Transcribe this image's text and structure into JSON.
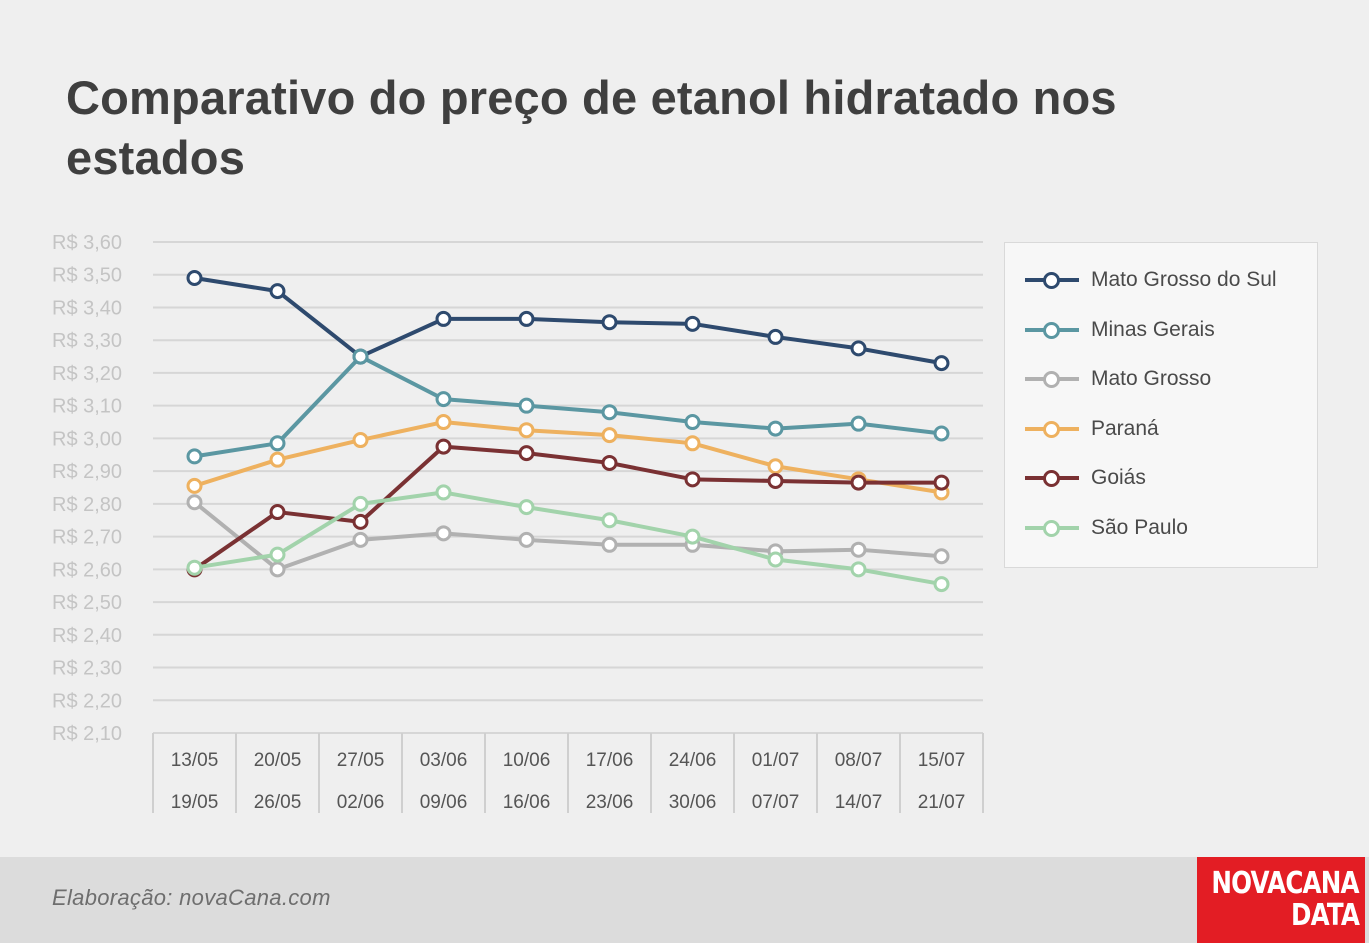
{
  "chart_data": {
    "type": "line",
    "title": "Comparativo do preço de etanol hidratado nos estados",
    "xlabel": "",
    "ylabel": "",
    "ylim": [
      2.1,
      3.6
    ],
    "y_ticks": [
      3.6,
      3.5,
      3.4,
      3.3,
      3.2,
      3.1,
      3.0,
      2.9,
      2.8,
      2.7,
      2.6,
      2.5,
      2.4,
      2.3,
      2.2,
      2.1
    ],
    "y_tick_labels": [
      "R$ 3,60",
      "R$ 3,50",
      "R$ 3,40",
      "R$ 3,30",
      "R$ 3,20",
      "R$ 3,10",
      "R$ 3,00",
      "R$ 2,90",
      "R$ 2,80",
      "R$ 2,70",
      "R$ 2,60",
      "R$ 2,50",
      "R$ 2,40",
      "R$ 2,30",
      "R$ 2,20",
      "R$ 2,10"
    ],
    "grid": true,
    "legend_position": "right",
    "categories": [
      {
        "start": "13/05",
        "end": "19/05"
      },
      {
        "start": "20/05",
        "end": "26/05"
      },
      {
        "start": "27/05",
        "end": "02/06"
      },
      {
        "start": "03/06",
        "end": "09/06"
      },
      {
        "start": "10/06",
        "end": "16/06"
      },
      {
        "start": "17/06",
        "end": "23/06"
      },
      {
        "start": "24/06",
        "end": "30/06"
      },
      {
        "start": "01/07",
        "end": "07/07"
      },
      {
        "start": "08/07",
        "end": "14/07"
      },
      {
        "start": "15/07",
        "end": "21/07"
      }
    ],
    "series": [
      {
        "name": "Mato Grosso do Sul",
        "color": "#2e4a6e",
        "values": [
          3.49,
          3.45,
          3.25,
          3.365,
          3.365,
          3.355,
          3.35,
          3.31,
          3.275,
          3.23
        ]
      },
      {
        "name": "Minas Gerais",
        "color": "#5b97a2",
        "values": [
          2.945,
          2.985,
          3.25,
          3.12,
          3.1,
          3.08,
          3.05,
          3.03,
          3.045,
          3.015
        ]
      },
      {
        "name": "Mato Grosso",
        "color": "#b1b1b1",
        "values": [
          2.805,
          2.6,
          2.69,
          2.71,
          2.69,
          2.675,
          2.675,
          2.655,
          2.66,
          2.64
        ]
      },
      {
        "name": "Paraná",
        "color": "#eeb15f",
        "values": [
          2.855,
          2.935,
          2.995,
          3.05,
          3.025,
          3.01,
          2.985,
          2.915,
          2.875,
          2.835
        ]
      },
      {
        "name": "Goiás",
        "color": "#7a3133",
        "values": [
          2.6,
          2.775,
          2.745,
          2.975,
          2.955,
          2.925,
          2.875,
          2.87,
          2.865,
          2.865
        ]
      },
      {
        "name": "São Paulo",
        "color": "#a2d3ab",
        "values": [
          2.605,
          2.645,
          2.8,
          2.835,
          2.79,
          2.75,
          2.7,
          2.63,
          2.6,
          2.555
        ]
      }
    ]
  },
  "footer": {
    "credit": "Elaboração: novaCana.com",
    "logo_line1": "NOVACANA",
    "logo_line2": "DATA"
  }
}
